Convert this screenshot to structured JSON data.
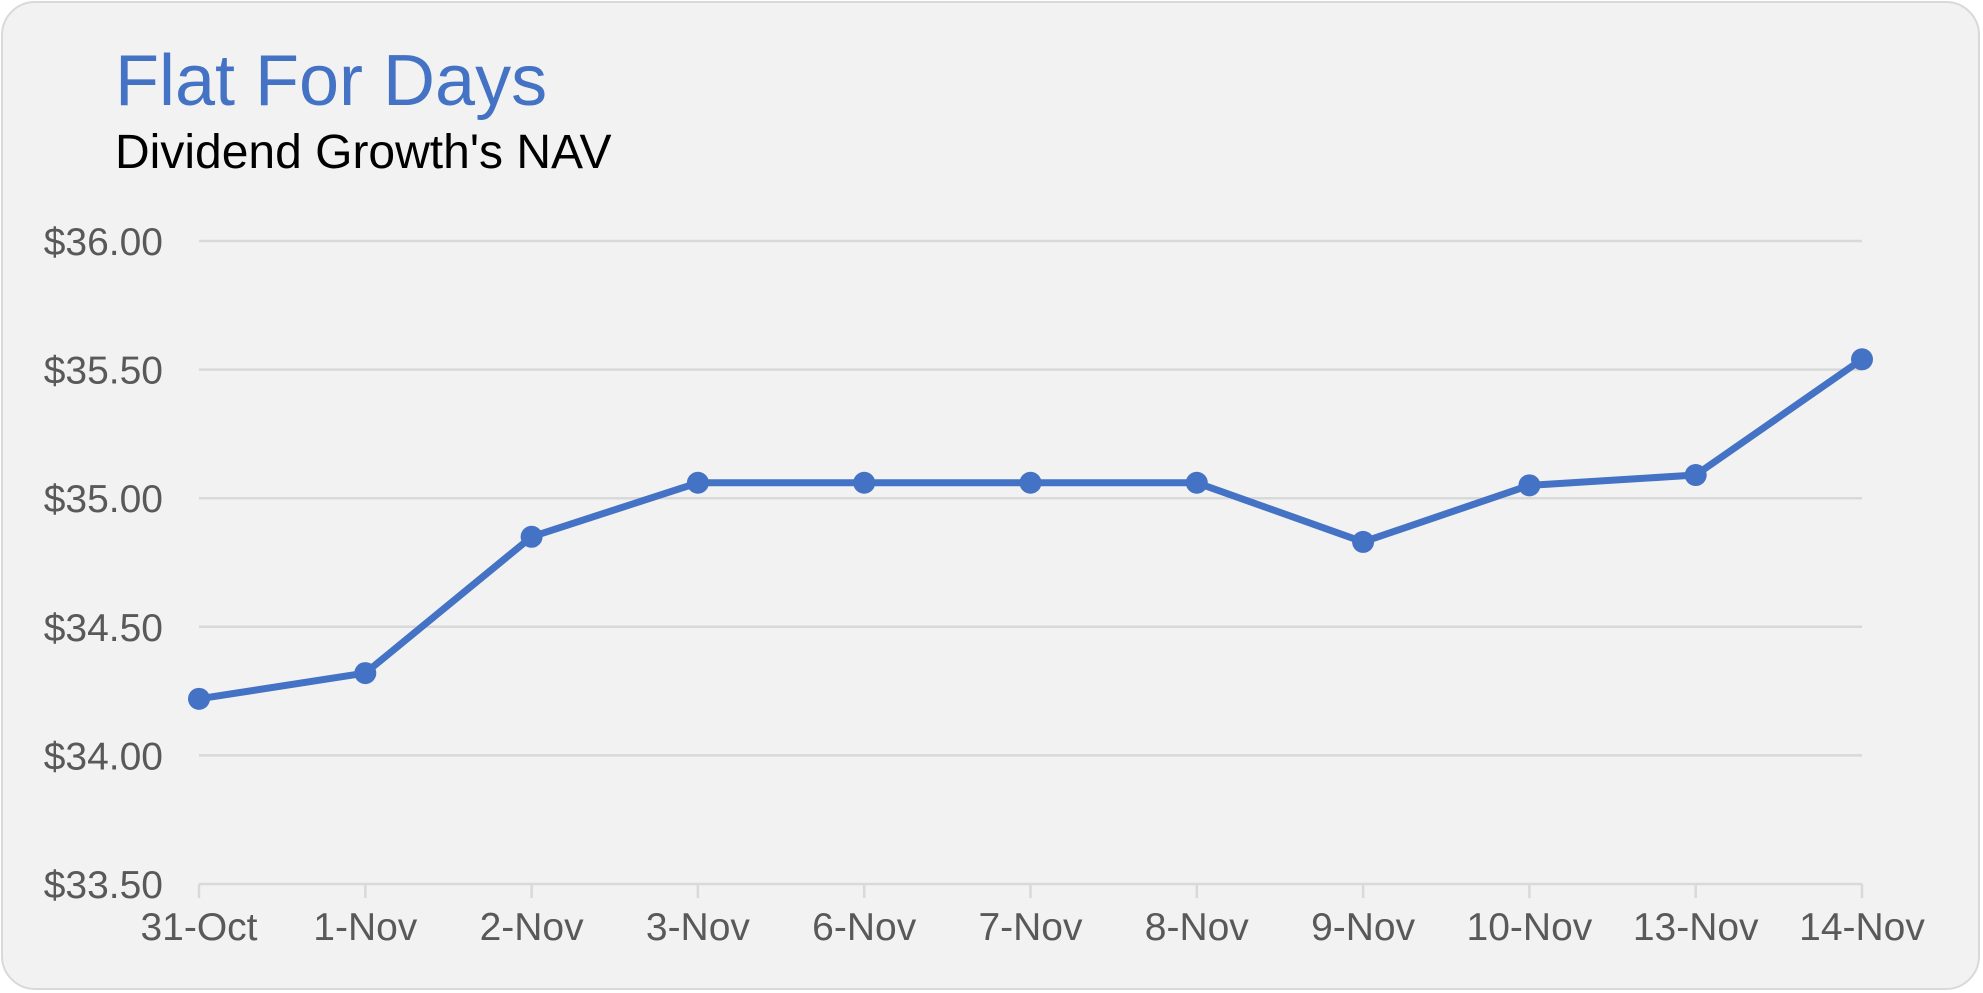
{
  "chart_data": {
    "type": "line",
    "title": "Flat For Days",
    "subtitle": "Dividend Growth's NAV",
    "categories": [
      "31-Oct",
      "1-Nov",
      "2-Nov",
      "3-Nov",
      "6-Nov",
      "7-Nov",
      "8-Nov",
      "9-Nov",
      "10-Nov",
      "13-Nov",
      "14-Nov"
    ],
    "series": [
      {
        "values": [
          34.22,
          34.32,
          34.85,
          35.06,
          35.06,
          35.06,
          35.06,
          34.83,
          35.05,
          35.09,
          35.54
        ]
      }
    ],
    "y_ticks": [
      "$33.50",
      "$34.00",
      "$34.50",
      "$35.00",
      "$35.50",
      "$36.00"
    ],
    "ylim": [
      33.5,
      36.0
    ],
    "y_step": 0.5,
    "grid": true,
    "markers": true,
    "legend": "none",
    "xlabel": "",
    "ylabel": ""
  },
  "colors": {
    "title": "#4472c4",
    "series": "#4472c4",
    "gridline": "#d9d9d9",
    "tick_label": "#595959",
    "background": "#f2f2f2"
  }
}
